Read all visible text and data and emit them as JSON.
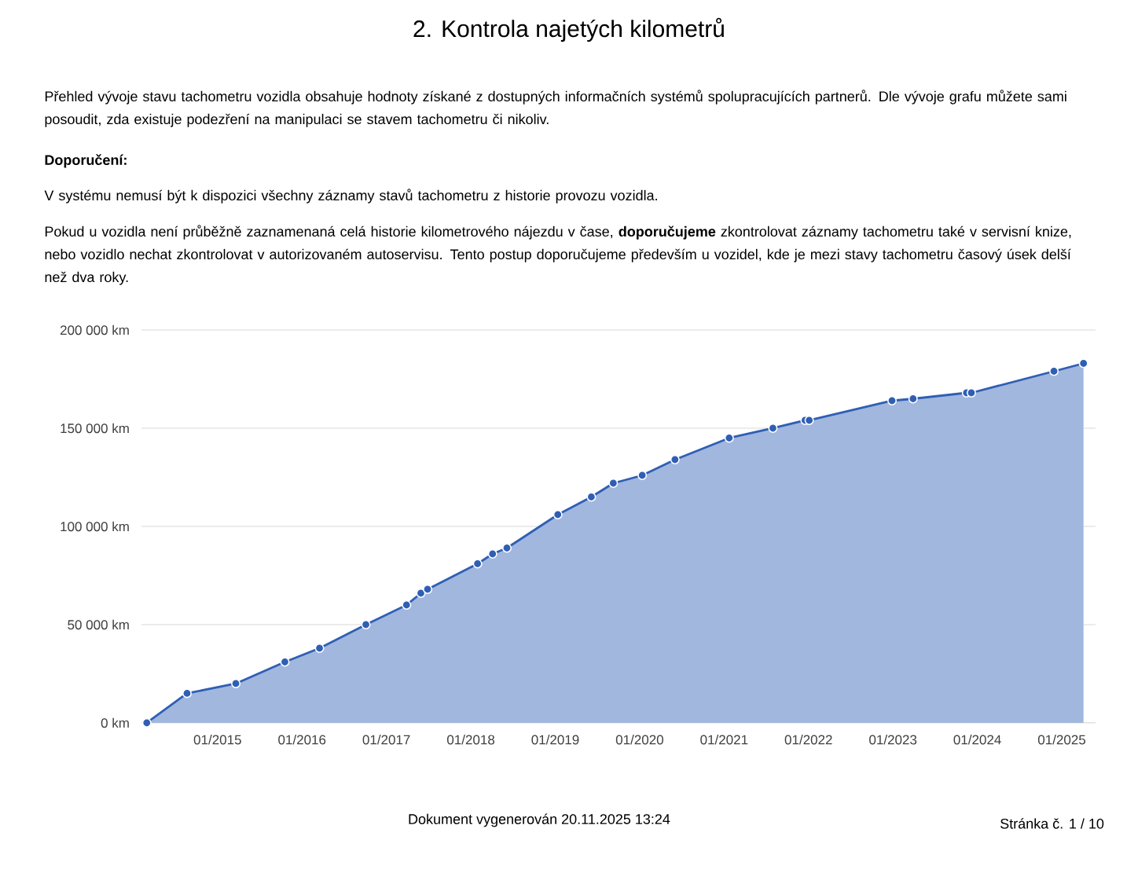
{
  "chart_data": {
    "type": "area",
    "title": "2. Kontrola najetých kilometrů",
    "annotations": [
      "Přehled vývoje stavu tachometru vozidla obsahuje hodnoty získané z dostupných informačních systémů spolupracujících partnerů. Dle vývoje grafu můžete sami posoudit, zda existuje podezření na manipulaci se stavem tachometru či nikoliv.",
      "Doporučení:",
      "V systému nemusí být k dispozici všechny záznamy stavů tachometru z historie provozu vozidla.",
      "Pokud u vozidla není průběžně zaznamenaná celá historie kilometrového nájezdu v čase, **doporučujeme** zkontrolovat záznamy tachometru také v servisní knize, nebo vozidlo nechat zkontrolovat v autorizovaném autoservisu. Tento postup doporučujeme především u vozidel, kde je mezi stavy tachometru časový úsek delší než dva roky.",
      "Dokument vygenerován 20.11.2025 13:24",
      "Stránka č. 1 / 10"
    ],
    "x": [
      "2014-03-01",
      "2014-08-22",
      "2015-03-21",
      "2015-10-19",
      "2016-03-17",
      "2016-10-04",
      "2017-03-29",
      "2017-05-30",
      "2017-06-28",
      "2018-01-30",
      "2018-04-05",
      "2018-06-06",
      "2019-01-12",
      "2019-06-06",
      "2019-09-09",
      "2020-01-12",
      "2020-06-02",
      "2021-01-23",
      "2021-07-31",
      "2021-12-17",
      "2022-01-04",
      "2022-12-28",
      "2023-03-29",
      "2023-11-15",
      "2023-12-06",
      "2024-11-28",
      "2025-04-05"
    ],
    "values": [
      0,
      15000,
      20000,
      31000,
      38000,
      50000,
      60000,
      66000,
      68000,
      81000,
      86000,
      89000,
      106000,
      115000,
      122000,
      126000,
      134000,
      145000,
      150000,
      154000,
      154000,
      164000,
      165000,
      168000,
      168000,
      179000,
      183000
    ],
    "color": "#2f5fb5",
    "xlim": [
      "2014-02-06",
      "2025-05-27"
    ],
    "xticks": [
      {
        "value": "2015-01",
        "label": "01/2015"
      },
      {
        "value": "2016-01",
        "label": "01/2016"
      },
      {
        "value": "2017-01",
        "label": "01/2017"
      },
      {
        "value": "2018-01",
        "label": "01/2018"
      },
      {
        "value": "2019-01",
        "label": "01/2019"
      },
      {
        "value": "2020-01",
        "label": "01/2020"
      },
      {
        "value": "2021-01",
        "label": "01/2021"
      },
      {
        "value": "2022-01",
        "label": "01/2022"
      },
      {
        "value": "2023-01",
        "label": "01/2023"
      },
      {
        "value": "2024-01",
        "label": "01/2024"
      },
      {
        "value": "2025-01",
        "label": "01/2025"
      }
    ],
    "ylim": [
      0,
      200000
    ],
    "yticks": [
      {
        "value": 0,
        "label": "0 km"
      },
      {
        "value": 50000,
        "label": "50 000 km"
      },
      {
        "value": 100000,
        "label": "100 000 km"
      },
      {
        "value": 150000,
        "label": "150 000 km"
      },
      {
        "value": 200000,
        "label": "200 000 km"
      }
    ],
    "grid": "y",
    "marker": "circle"
  }
}
